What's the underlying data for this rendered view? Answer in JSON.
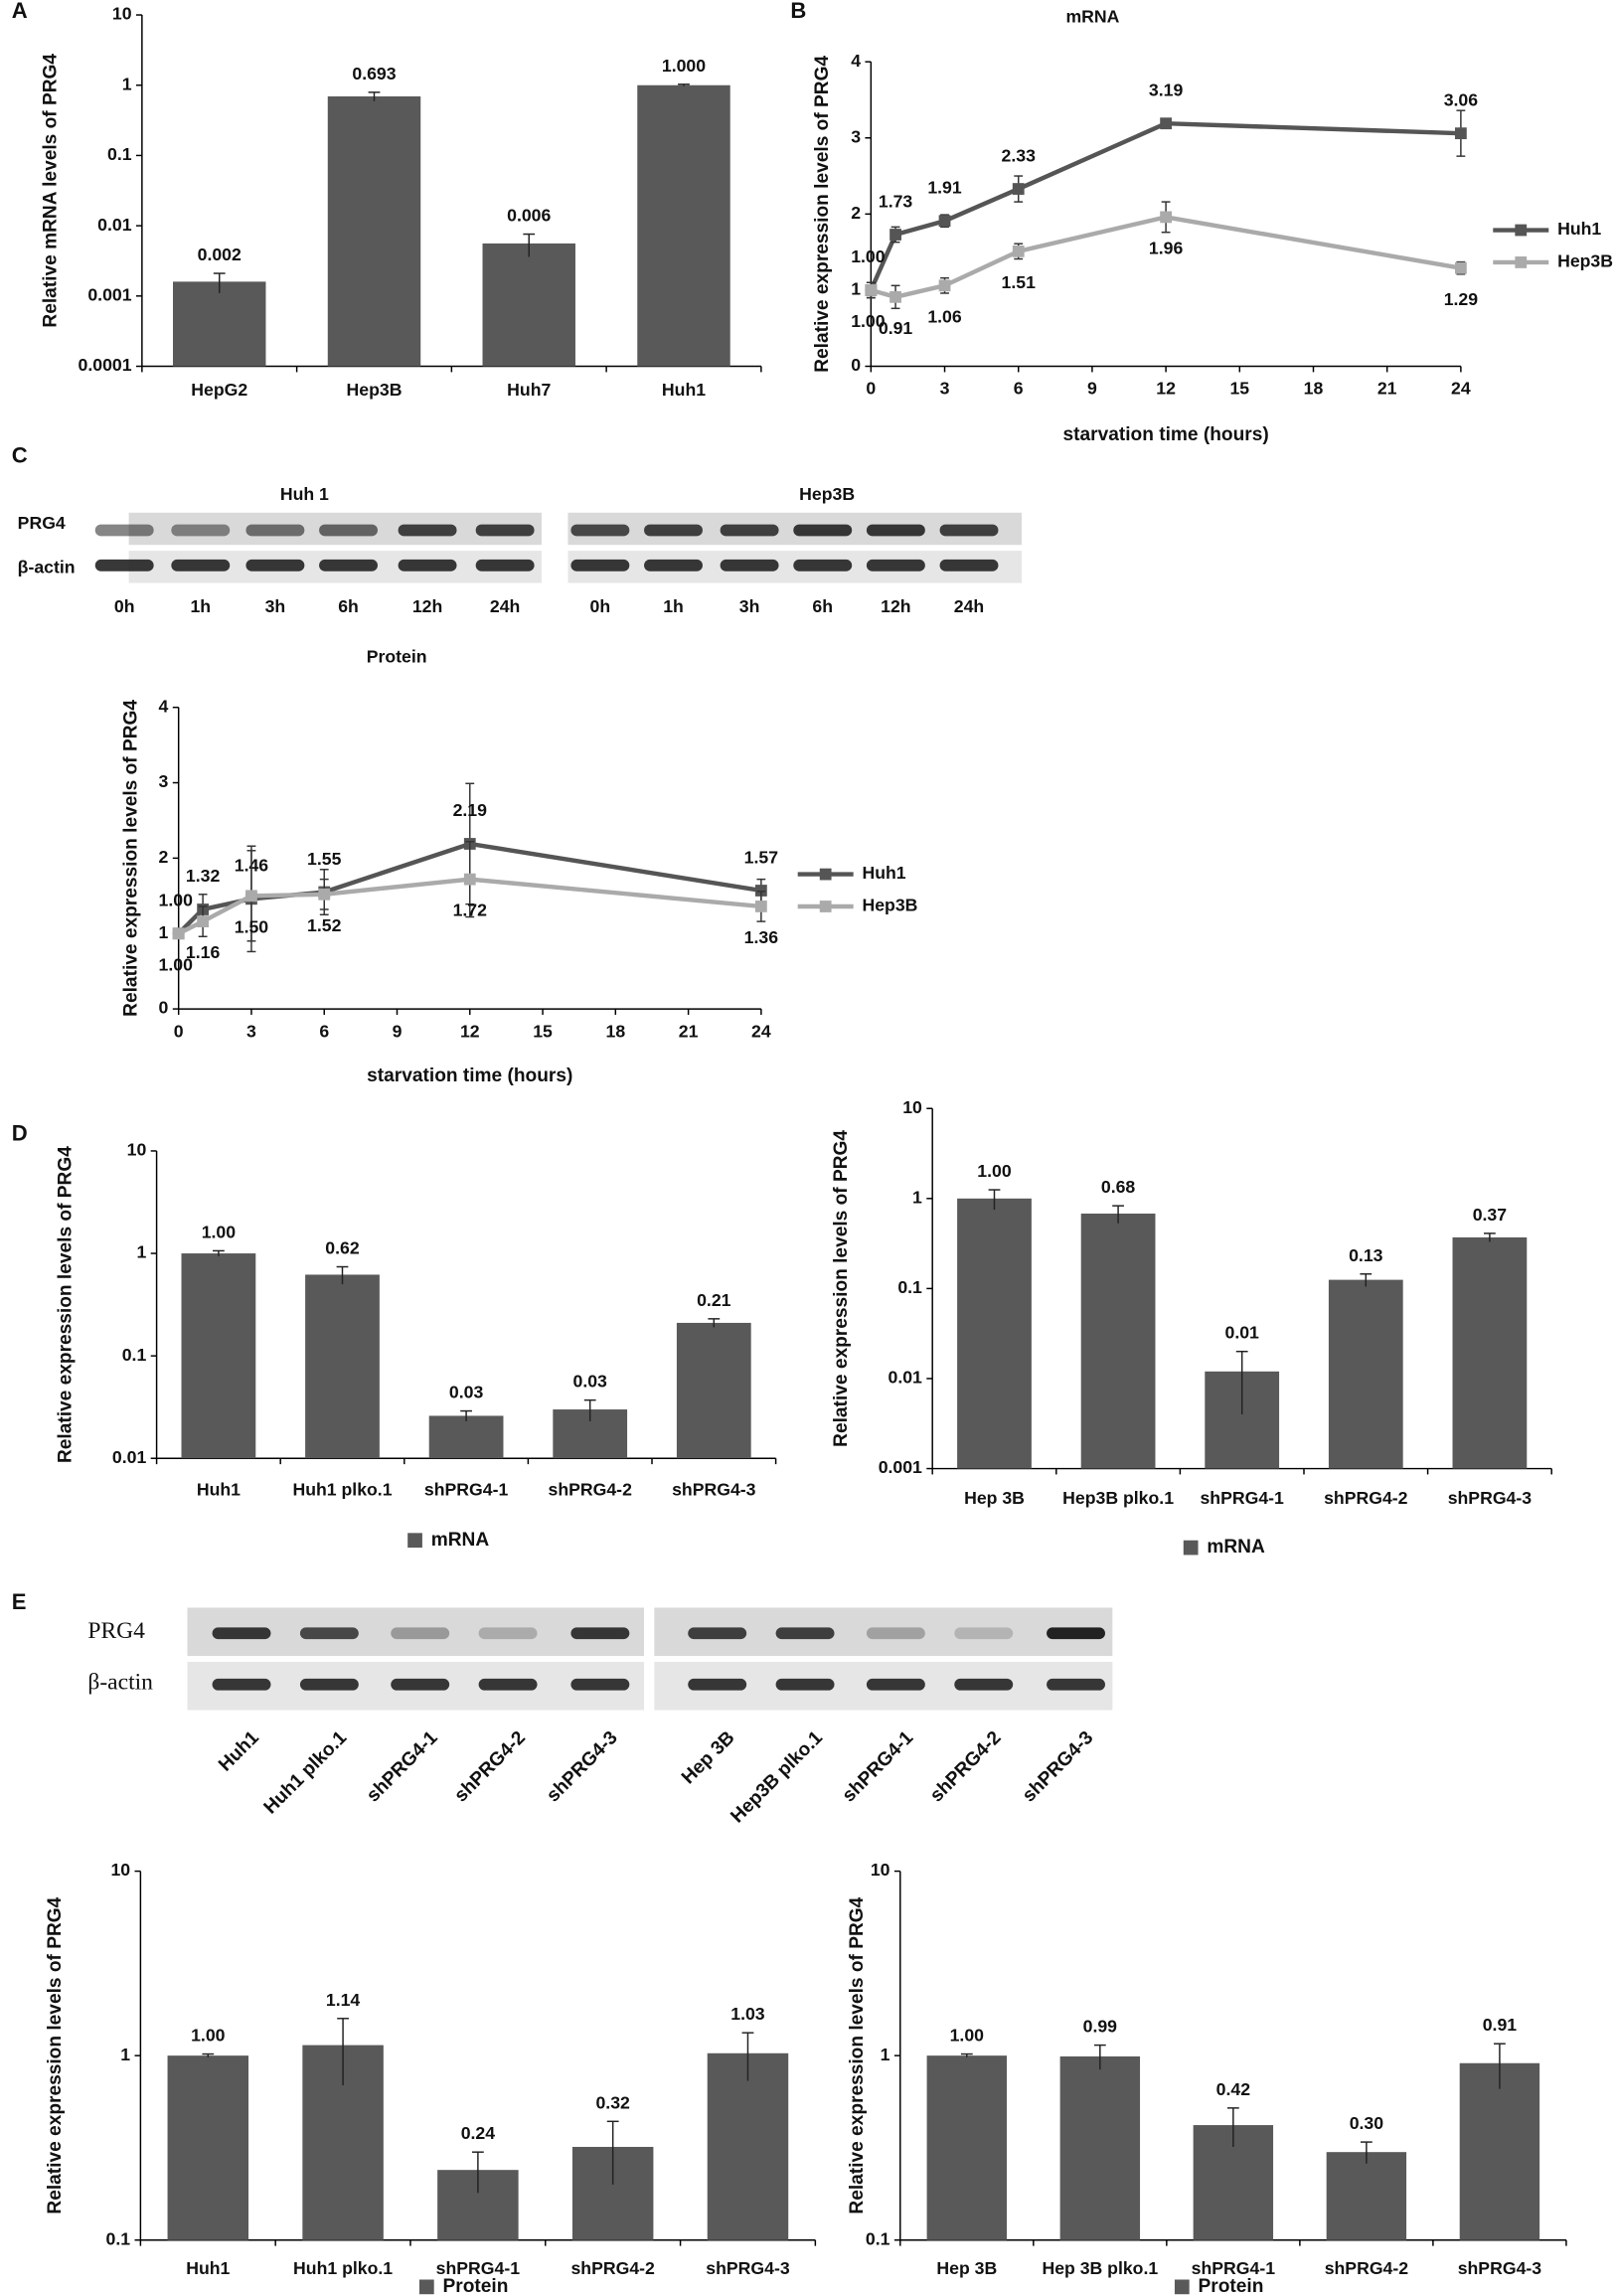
{
  "panel_labels": [
    "A",
    "B",
    "C",
    "D",
    "E"
  ],
  "blots": [
    {
      "title": "Huh 1",
      "rows": [
        "PRG4",
        "β-actin"
      ],
      "lanes": [
        "0h",
        "1h",
        "3h",
        "6h",
        "12h",
        "24h"
      ]
    },
    {
      "title": "Hep3B",
      "lanes": [
        "0h",
        "1h",
        "3h",
        "6h",
        "12h",
        "24h"
      ]
    },
    {
      "rows": [
        "PRG4",
        "β-actin"
      ],
      "lanes": [
        "Huh1",
        "Huh1 plko.1",
        "shPRG4-1",
        "shPRG4-2",
        "shPRG4-3"
      ]
    },
    {
      "lanes": [
        "Hep 3B",
        "Hep3B plko.1",
        "shPRG4-1",
        "shPRG4-2",
        "shPRG4-3"
      ]
    }
  ],
  "chart_data": [
    {
      "type": "bar",
      "ylabel": "Relative mRNA levels of PRG4",
      "log_scale": true,
      "ylim": [
        0.0001,
        10
      ],
      "yticks": [
        0.0001,
        0.001,
        0.01,
        0.1,
        1,
        10
      ],
      "categories": [
        "HepG2",
        "Hep3B",
        "Huh7",
        "Huh1"
      ],
      "series": [
        {
          "color": "#595959",
          "values": [
            0.0016,
            0.693,
            0.0056,
            1.0
          ],
          "value_labels": [
            "0.002",
            "0.693",
            "0.006",
            "1.000"
          ],
          "errors": [
            0.0005,
            0.1,
            0.002,
            0.03
          ]
        }
      ]
    },
    {
      "type": "line",
      "title": "mRNA",
      "xlabel": "starvation time (hours)",
      "ylabel": "Relative expression levels of PRG4",
      "x": [
        0,
        1,
        3,
        6,
        12,
        24
      ],
      "xlim": [
        0,
        24
      ],
      "xticks": [
        0,
        3,
        6,
        9,
        12,
        15,
        18,
        21,
        24
      ],
      "ylim": [
        0,
        4
      ],
      "yticks": [
        0,
        1,
        2,
        3,
        4
      ],
      "legend": "right",
      "series": [
        {
          "name": "Huh1",
          "color": "#555555",
          "values": [
            1.0,
            1.73,
            1.91,
            2.33,
            3.19,
            3.06
          ],
          "value_labels": [
            "1.00",
            "1.73",
            "1.91",
            "2.33",
            "3.19",
            "3.06"
          ],
          "errors": [
            0.1,
            0.1,
            0.08,
            0.17,
            0.05,
            0.3
          ]
        },
        {
          "name": "Hep3B",
          "color": "#aaaaaa",
          "values": [
            1.0,
            0.91,
            1.06,
            1.51,
            1.96,
            1.29
          ],
          "value_labels": [
            "1.00",
            "0.91",
            "1.06",
            "1.51",
            "1.96",
            "1.29"
          ],
          "errors": [
            0.1,
            0.15,
            0.1,
            0.1,
            0.2,
            0.08
          ]
        }
      ]
    },
    {
      "type": "line",
      "title": "Protein",
      "xlabel": "starvation time (hours)",
      "ylabel": "Relative expression levels of PRG4",
      "x": [
        0,
        1,
        3,
        6,
        12,
        24
      ],
      "xlim": [
        0,
        24
      ],
      "xticks": [
        0,
        3,
        6,
        9,
        12,
        15,
        18,
        21,
        24
      ],
      "ylim": [
        0,
        4
      ],
      "yticks": [
        0,
        1,
        2,
        3,
        4
      ],
      "legend": "right",
      "series": [
        {
          "name": "Huh1",
          "color": "#555555",
          "values": [
            1.0,
            1.32,
            1.46,
            1.55,
            2.19,
            1.57
          ],
          "value_labels": [
            "1.00",
            "1.32",
            "1.46",
            "1.55",
            "2.19",
            "1.57"
          ],
          "errors": [
            0.05,
            0.2,
            0.7,
            0.3,
            0.8,
            0.15
          ]
        },
        {
          "name": "Hep3B",
          "color": "#aaaaaa",
          "values": [
            1.0,
            1.16,
            1.5,
            1.52,
            1.72,
            1.36
          ],
          "value_labels": [
            "1.00",
            "1.16",
            "1.50",
            "1.52",
            "1.72",
            "1.36"
          ],
          "errors": [
            0.05,
            0.2,
            0.6,
            0.2,
            0.5,
            0.2
          ]
        }
      ]
    },
    {
      "type": "bar",
      "ylabel": "Relative expression levels of PRG4",
      "log_scale": true,
      "ylim": [
        0.01,
        10
      ],
      "yticks": [
        0.01,
        0.1,
        1,
        10
      ],
      "legend": "bottom",
      "categories": [
        "Huh1",
        "Huh1 plko.1",
        "shPRG4-1",
        "shPRG4-2",
        "shPRG4-3"
      ],
      "series": [
        {
          "name": "mRNA",
          "color": "#595959",
          "values": [
            1.0,
            0.62,
            0.026,
            0.03,
            0.21
          ],
          "value_labels": [
            "1.00",
            "0.62",
            "0.03",
            "0.03",
            "0.21"
          ],
          "errors": [
            0.06,
            0.12,
            0.003,
            0.007,
            0.02
          ]
        }
      ]
    },
    {
      "type": "bar",
      "ylabel": "Relative expression levels of PRG4",
      "log_scale": true,
      "ylim": [
        0.001,
        10
      ],
      "yticks": [
        0.001,
        0.01,
        0.1,
        1,
        10
      ],
      "legend": "bottom",
      "categories": [
        "Hep 3B",
        "Hep3B plko.1",
        "shPRG4-1",
        "shPRG4-2",
        "shPRG4-3"
      ],
      "series": [
        {
          "name": "mRNA",
          "color": "#595959",
          "values": [
            1.0,
            0.68,
            0.012,
            0.125,
            0.37
          ],
          "value_labels": [
            "1.00",
            "0.68",
            "0.01",
            "0.13",
            "0.37"
          ],
          "errors": [
            0.25,
            0.15,
            0.008,
            0.02,
            0.04
          ]
        }
      ]
    },
    {
      "type": "bar",
      "ylabel": "Relative expression levels of PRG4",
      "log_scale": true,
      "ylim": [
        0.1,
        10
      ],
      "yticks": [
        0.1,
        1,
        10
      ],
      "legend": "bottom",
      "categories": [
        "Huh1",
        "Huh1 plko.1",
        "shPRG4-1",
        "shPRG4-2",
        "shPRG4-3"
      ],
      "series": [
        {
          "name": "Protein",
          "color": "#595959",
          "values": [
            1.0,
            1.14,
            0.24,
            0.32,
            1.03
          ],
          "value_labels": [
            "1.00",
            "1.14",
            "0.24",
            "0.32",
            "1.03"
          ],
          "errors": [
            0.02,
            0.45,
            0.06,
            0.12,
            0.3
          ]
        }
      ]
    },
    {
      "type": "bar",
      "ylabel": "Relative expression levels of PRG4",
      "log_scale": true,
      "ylim": [
        0.1,
        10
      ],
      "yticks": [
        0.1,
        1,
        10
      ],
      "legend": "bottom",
      "categories": [
        "Hep 3B",
        "Hep 3B plko.1",
        "shPRG4-1",
        "shPRG4-2",
        "shPRG4-3"
      ],
      "series": [
        {
          "name": "Protein",
          "color": "#595959",
          "values": [
            1.0,
            0.99,
            0.42,
            0.3,
            0.91
          ],
          "value_labels": [
            "1.00",
            "0.99",
            "0.42",
            "0.30",
            "0.91"
          ],
          "errors": [
            0.02,
            0.15,
            0.1,
            0.04,
            0.25
          ]
        }
      ]
    }
  ]
}
